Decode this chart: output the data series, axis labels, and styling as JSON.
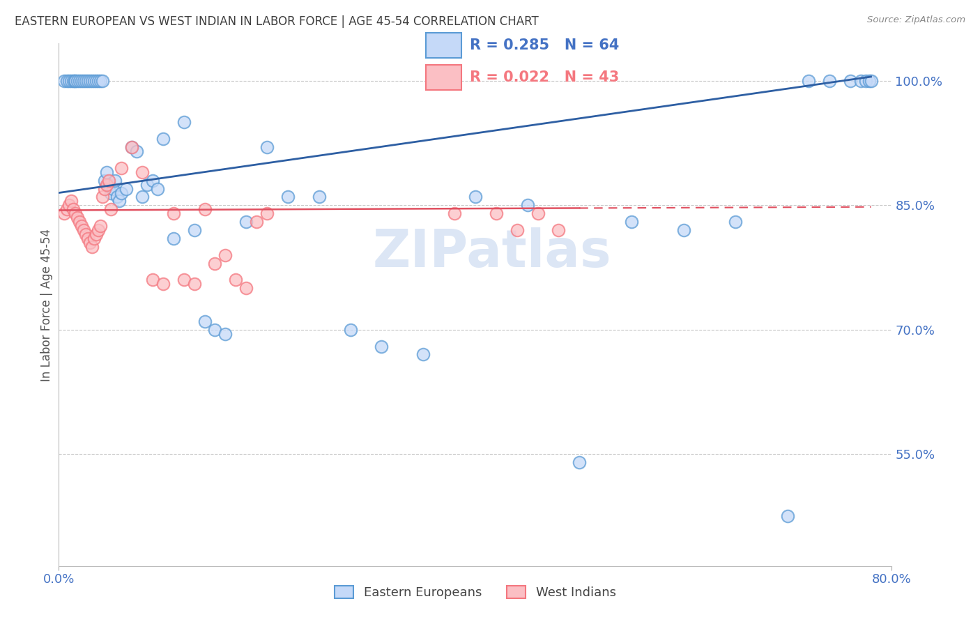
{
  "title": "EASTERN EUROPEAN VS WEST INDIAN IN LABOR FORCE | AGE 45-54 CORRELATION CHART",
  "source_text": "Source: ZipAtlas.com",
  "ylabel": "In Labor Force | Age 45-54",
  "y_tick_labels": [
    "100.0%",
    "85.0%",
    "70.0%",
    "55.0%"
  ],
  "y_tick_values": [
    1.0,
    0.85,
    0.7,
    0.55
  ],
  "x_min": 0.0,
  "x_max": 0.8,
  "y_min": 0.415,
  "y_max": 1.045,
  "blue_color": "#5b9bd5",
  "pink_color": "#f4777f",
  "trend_blue": "#2e5fa3",
  "trend_pink": "#e05060",
  "grid_color": "#c8c8c8",
  "axis_label_color": "#4472c4",
  "title_color": "#404040",
  "watermark_color": "#dce6f5",
  "blue_x": [
    0.005,
    0.008,
    0.01,
    0.012,
    0.014,
    0.015,
    0.016,
    0.018,
    0.02,
    0.022,
    0.024,
    0.026,
    0.028,
    0.03,
    0.032,
    0.034,
    0.036,
    0.038,
    0.04,
    0.042,
    0.044,
    0.046,
    0.048,
    0.05,
    0.052,
    0.054,
    0.056,
    0.058,
    0.06,
    0.065,
    0.07,
    0.075,
    0.08,
    0.085,
    0.09,
    0.095,
    0.1,
    0.11,
    0.12,
    0.13,
    0.14,
    0.15,
    0.16,
    0.18,
    0.2,
    0.22,
    0.25,
    0.28,
    0.31,
    0.35,
    0.4,
    0.45,
    0.5,
    0.55,
    0.6,
    0.65,
    0.7,
    0.72,
    0.74,
    0.76,
    0.77,
    0.775,
    0.778,
    0.78
  ],
  "blue_y": [
    1.0,
    1.0,
    1.0,
    1.0,
    1.0,
    1.0,
    1.0,
    1.0,
    1.0,
    1.0,
    1.0,
    1.0,
    1.0,
    1.0,
    1.0,
    1.0,
    1.0,
    1.0,
    1.0,
    1.0,
    0.88,
    0.89,
    0.875,
    0.865,
    0.87,
    0.88,
    0.86,
    0.855,
    0.865,
    0.87,
    0.92,
    0.915,
    0.86,
    0.875,
    0.88,
    0.87,
    0.93,
    0.81,
    0.95,
    0.82,
    0.71,
    0.7,
    0.695,
    0.83,
    0.92,
    0.86,
    0.86,
    0.7,
    0.68,
    0.67,
    0.86,
    0.85,
    0.54,
    0.83,
    0.82,
    0.83,
    0.475,
    1.0,
    1.0,
    1.0,
    1.0,
    1.0,
    1.0,
    1.0
  ],
  "pink_x": [
    0.005,
    0.008,
    0.01,
    0.012,
    0.014,
    0.016,
    0.018,
    0.02,
    0.022,
    0.024,
    0.026,
    0.028,
    0.03,
    0.032,
    0.034,
    0.036,
    0.038,
    0.04,
    0.042,
    0.044,
    0.046,
    0.048,
    0.05,
    0.06,
    0.07,
    0.08,
    0.09,
    0.1,
    0.11,
    0.12,
    0.13,
    0.14,
    0.15,
    0.16,
    0.17,
    0.18,
    0.19,
    0.2,
    0.38,
    0.42,
    0.44,
    0.46,
    0.48
  ],
  "pink_y": [
    0.84,
    0.845,
    0.85,
    0.855,
    0.845,
    0.84,
    0.835,
    0.83,
    0.825,
    0.82,
    0.815,
    0.81,
    0.805,
    0.8,
    0.81,
    0.815,
    0.82,
    0.825,
    0.86,
    0.87,
    0.875,
    0.88,
    0.845,
    0.895,
    0.92,
    0.89,
    0.76,
    0.755,
    0.84,
    0.76,
    0.755,
    0.845,
    0.78,
    0.79,
    0.76,
    0.75,
    0.83,
    0.84,
    0.84,
    0.84,
    0.82,
    0.84,
    0.82
  ],
  "blue_trend_x0": 0.0,
  "blue_trend_y0": 0.865,
  "blue_trend_x1": 0.78,
  "blue_trend_y1": 1.005,
  "pink_trend_x0": 0.0,
  "pink_trend_y0": 0.844,
  "pink_trend_x1": 0.78,
  "pink_trend_y1": 0.848
}
